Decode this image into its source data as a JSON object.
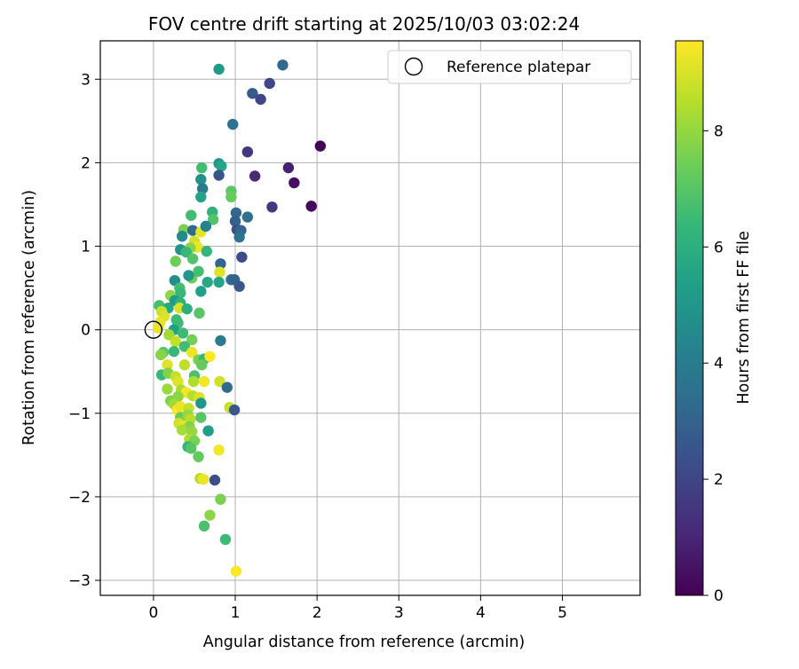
{
  "chart_data": {
    "type": "scatter",
    "title": "FOV centre drift starting at 2025/10/03 03:02:24",
    "xlabel": "Angular distance from reference (arcmin)",
    "ylabel": "Rotation from reference (arcmin)",
    "xlim": [
      -0.65,
      5.95
    ],
    "ylim": [
      -3.18,
      3.46
    ],
    "x_ticks": [
      0,
      1,
      2,
      3,
      4,
      5
    ],
    "x_tick_labels": [
      "0",
      "1",
      "2",
      "3",
      "4",
      "5"
    ],
    "y_ticks": [
      -3,
      -2,
      -1,
      0,
      1,
      2,
      3
    ],
    "y_tick_labels": [
      "−3",
      "−2",
      "−1",
      "0",
      "1",
      "2",
      "3"
    ],
    "grid": true,
    "legend": {
      "placement": "top-right",
      "entries": [
        {
          "label": "Reference platepar",
          "marker": "open-circle"
        }
      ]
    },
    "reference_point": {
      "x": 0,
      "y": 0
    },
    "colorbar": {
      "label": "Hours from first FF file",
      "colormap": "viridis",
      "range": [
        0,
        9.55
      ],
      "ticks": [
        0,
        2,
        4,
        6,
        8
      ],
      "tick_labels": [
        "0",
        "2",
        "4",
        "6",
        "8"
      ]
    },
    "points": [
      {
        "x": 2.04,
        "y": 2.2,
        "c": 0.1
      },
      {
        "x": 1.93,
        "y": 1.48,
        "c": 0.2
      },
      {
        "x": 1.72,
        "y": 1.76,
        "c": 0.4
      },
      {
        "x": 1.65,
        "y": 1.94,
        "c": 0.9
      },
      {
        "x": 1.45,
        "y": 1.47,
        "c": 1.6
      },
      {
        "x": 1.24,
        "y": 1.84,
        "c": 1.2
      },
      {
        "x": 1.15,
        "y": 2.13,
        "c": 1.5
      },
      {
        "x": 1.31,
        "y": 2.76,
        "c": 2.0
      },
      {
        "x": 1.42,
        "y": 2.95,
        "c": 2.1
      },
      {
        "x": 1.21,
        "y": 2.83,
        "c": 2.7
      },
      {
        "x": 1.58,
        "y": 3.17,
        "c": 3.3
      },
      {
        "x": 0.97,
        "y": 2.46,
        "c": 3.6
      },
      {
        "x": 0.8,
        "y": 3.12,
        "c": 5.2
      },
      {
        "x": 0.8,
        "y": 1.99,
        "c": 5.0
      },
      {
        "x": 0.83,
        "y": 1.96,
        "c": 5.6
      },
      {
        "x": 0.8,
        "y": 1.85,
        "c": 2.5
      },
      {
        "x": 0.59,
        "y": 1.94,
        "c": 6.6
      },
      {
        "x": 0.58,
        "y": 1.8,
        "c": 4.8
      },
      {
        "x": 0.6,
        "y": 1.69,
        "c": 3.9
      },
      {
        "x": 0.58,
        "y": 1.59,
        "c": 5.5
      },
      {
        "x": 0.95,
        "y": 1.66,
        "c": 7.1
      },
      {
        "x": 0.95,
        "y": 1.59,
        "c": 7.3
      },
      {
        "x": 1.01,
        "y": 1.4,
        "c": 3.2
      },
      {
        "x": 1.15,
        "y": 1.35,
        "c": 3.5
      },
      {
        "x": 1.0,
        "y": 1.3,
        "c": 2.9
      },
      {
        "x": 1.02,
        "y": 1.2,
        "c": 2.4
      },
      {
        "x": 1.07,
        "y": 1.19,
        "c": 3.1
      },
      {
        "x": 1.05,
        "y": 1.11,
        "c": 3.7
      },
      {
        "x": 1.08,
        "y": 0.87,
        "c": 2.2
      },
      {
        "x": 0.72,
        "y": 1.41,
        "c": 6.2
      },
      {
        "x": 0.73,
        "y": 1.32,
        "c": 6.9
      },
      {
        "x": 0.46,
        "y": 1.37,
        "c": 6.6
      },
      {
        "x": 0.37,
        "y": 1.2,
        "c": 7.6
      },
      {
        "x": 0.35,
        "y": 1.12,
        "c": 4.6
      },
      {
        "x": 0.48,
        "y": 1.19,
        "c": 3.3
      },
      {
        "x": 0.58,
        "y": 1.17,
        "c": 9.2
      },
      {
        "x": 0.64,
        "y": 1.24,
        "c": 4.2
      },
      {
        "x": 0.5,
        "y": 1.06,
        "c": 8.9
      },
      {
        "x": 0.54,
        "y": 0.99,
        "c": 9.3
      },
      {
        "x": 0.45,
        "y": 0.98,
        "c": 7.8
      },
      {
        "x": 0.33,
        "y": 0.96,
        "c": 4.9
      },
      {
        "x": 0.4,
        "y": 0.93,
        "c": 6.4
      },
      {
        "x": 0.27,
        "y": 0.82,
        "c": 7.4
      },
      {
        "x": 0.48,
        "y": 0.85,
        "c": 6.9
      },
      {
        "x": 0.65,
        "y": 0.94,
        "c": 6.3
      },
      {
        "x": 0.82,
        "y": 0.79,
        "c": 3.1
      },
      {
        "x": 0.81,
        "y": 0.69,
        "c": 9.1
      },
      {
        "x": 0.8,
        "y": 0.57,
        "c": 5.6
      },
      {
        "x": 0.66,
        "y": 0.57,
        "c": 5.7
      },
      {
        "x": 0.47,
        "y": 0.62,
        "c": 7.4
      },
      {
        "x": 0.55,
        "y": 0.7,
        "c": 6.7
      },
      {
        "x": 0.43,
        "y": 0.65,
        "c": 5.1
      },
      {
        "x": 0.26,
        "y": 0.59,
        "c": 4.7
      },
      {
        "x": 0.58,
        "y": 0.46,
        "c": 5.4
      },
      {
        "x": 0.95,
        "y": 0.6,
        "c": 3.6
      },
      {
        "x": 0.99,
        "y": 0.6,
        "c": 3.0
      },
      {
        "x": 1.05,
        "y": 0.52,
        "c": 2.6
      },
      {
        "x": 0.32,
        "y": 0.5,
        "c": 6.7
      },
      {
        "x": 0.33,
        "y": 0.44,
        "c": 6.4
      },
      {
        "x": 0.21,
        "y": 0.41,
        "c": 7.9
      },
      {
        "x": 0.26,
        "y": 0.35,
        "c": 5.2
      },
      {
        "x": 0.33,
        "y": 0.32,
        "c": 6.1
      },
      {
        "x": 0.07,
        "y": 0.29,
        "c": 6.7
      },
      {
        "x": 0.18,
        "y": 0.26,
        "c": 5.7
      },
      {
        "x": 0.32,
        "y": 0.26,
        "c": 9.0
      },
      {
        "x": 0.41,
        "y": 0.25,
        "c": 6.0
      },
      {
        "x": 0.56,
        "y": 0.2,
        "c": 7.0
      },
      {
        "x": 0.1,
        "y": 0.22,
        "c": 8.8
      },
      {
        "x": 0.13,
        "y": 0.16,
        "c": 9.0
      },
      {
        "x": 0.28,
        "y": 0.12,
        "c": 6.5
      },
      {
        "x": 0.3,
        "y": 0.08,
        "c": 6.5
      },
      {
        "x": 0.08,
        "y": 0.09,
        "c": 9.2
      },
      {
        "x": 0.06,
        "y": 0.02,
        "c": 9.3
      },
      {
        "x": 0.25,
        "y": 0.0,
        "c": 5.4
      },
      {
        "x": 0.36,
        "y": -0.04,
        "c": 6.5
      },
      {
        "x": 0.19,
        "y": -0.06,
        "c": 8.2
      },
      {
        "x": 0.27,
        "y": -0.14,
        "c": 8.7
      },
      {
        "x": 0.47,
        "y": -0.12,
        "c": 7.5
      },
      {
        "x": 0.82,
        "y": -0.13,
        "c": 3.9
      },
      {
        "x": 0.38,
        "y": -0.2,
        "c": 6.6
      },
      {
        "x": 0.25,
        "y": -0.26,
        "c": 6.4
      },
      {
        "x": 0.12,
        "y": -0.27,
        "c": 7.1
      },
      {
        "x": 0.09,
        "y": -0.3,
        "c": 7.8
      },
      {
        "x": 0.47,
        "y": -0.27,
        "c": 9.3
      },
      {
        "x": 0.55,
        "y": -0.36,
        "c": 7.6
      },
      {
        "x": 0.62,
        "y": -0.35,
        "c": 6.3
      },
      {
        "x": 0.69,
        "y": -0.32,
        "c": 9.5
      },
      {
        "x": 0.38,
        "y": -0.42,
        "c": 8.6
      },
      {
        "x": 0.17,
        "y": -0.42,
        "c": 9.1
      },
      {
        "x": 0.59,
        "y": -0.42,
        "c": 7.3
      },
      {
        "x": 0.1,
        "y": -0.54,
        "c": 6.4
      },
      {
        "x": 0.18,
        "y": -0.52,
        "c": 7.7
      },
      {
        "x": 0.27,
        "y": -0.56,
        "c": 8.7
      },
      {
        "x": 0.3,
        "y": -0.62,
        "c": 9.1
      },
      {
        "x": 0.5,
        "y": -0.55,
        "c": 6.8
      },
      {
        "x": 0.49,
        "y": -0.62,
        "c": 8.4
      },
      {
        "x": 0.62,
        "y": -0.62,
        "c": 9.4
      },
      {
        "x": 0.81,
        "y": -0.62,
        "c": 8.9
      },
      {
        "x": 0.9,
        "y": -0.69,
        "c": 3.3
      },
      {
        "x": 0.17,
        "y": -0.71,
        "c": 8.1
      },
      {
        "x": 0.34,
        "y": -0.72,
        "c": 8.3
      },
      {
        "x": 0.4,
        "y": -0.75,
        "c": 9.4
      },
      {
        "x": 0.21,
        "y": -0.85,
        "c": 7.7
      },
      {
        "x": 0.3,
        "y": -0.8,
        "c": 7.9
      },
      {
        "x": 0.48,
        "y": -0.79,
        "c": 8.5
      },
      {
        "x": 0.56,
        "y": -0.81,
        "c": 9.0
      },
      {
        "x": 0.58,
        "y": -0.88,
        "c": 5.0
      },
      {
        "x": 0.25,
        "y": -0.89,
        "c": 8.2
      },
      {
        "x": 0.29,
        "y": -0.96,
        "c": 9.5
      },
      {
        "x": 0.33,
        "y": -0.92,
        "c": 9.3
      },
      {
        "x": 0.43,
        "y": -0.94,
        "c": 8.7
      },
      {
        "x": 0.93,
        "y": -0.93,
        "c": 8.8
      },
      {
        "x": 0.99,
        "y": -0.96,
        "c": 2.6
      },
      {
        "x": 0.33,
        "y": -1.05,
        "c": 7.3
      },
      {
        "x": 0.42,
        "y": -1.02,
        "c": 8.0
      },
      {
        "x": 0.45,
        "y": -1.07,
        "c": 8.5
      },
      {
        "x": 0.58,
        "y": -1.05,
        "c": 7.0
      },
      {
        "x": 0.31,
        "y": -1.12,
        "c": 8.9
      },
      {
        "x": 0.37,
        "y": -1.15,
        "c": 9.2
      },
      {
        "x": 0.44,
        "y": -1.16,
        "c": 7.7
      },
      {
        "x": 0.35,
        "y": -1.2,
        "c": 8.3
      },
      {
        "x": 0.47,
        "y": -1.22,
        "c": 8.0
      },
      {
        "x": 0.67,
        "y": -1.21,
        "c": 5.3
      },
      {
        "x": 0.44,
        "y": -1.31,
        "c": 8.4
      },
      {
        "x": 0.5,
        "y": -1.33,
        "c": 7.6
      },
      {
        "x": 0.42,
        "y": -1.4,
        "c": 6.3
      },
      {
        "x": 0.46,
        "y": -1.42,
        "c": 7.0
      },
      {
        "x": 0.8,
        "y": -1.44,
        "c": 9.4
      },
      {
        "x": 0.55,
        "y": -1.52,
        "c": 7.2
      },
      {
        "x": 0.57,
        "y": -1.78,
        "c": 8.5
      },
      {
        "x": 0.61,
        "y": -1.79,
        "c": 9.3
      },
      {
        "x": 0.75,
        "y": -1.8,
        "c": 2.3
      },
      {
        "x": 0.82,
        "y": -2.03,
        "c": 7.6
      },
      {
        "x": 0.69,
        "y": -2.22,
        "c": 7.9
      },
      {
        "x": 0.62,
        "y": -2.35,
        "c": 6.8
      },
      {
        "x": 0.88,
        "y": -2.51,
        "c": 6.5
      },
      {
        "x": 1.01,
        "y": -2.89,
        "c": 9.5
      }
    ]
  }
}
